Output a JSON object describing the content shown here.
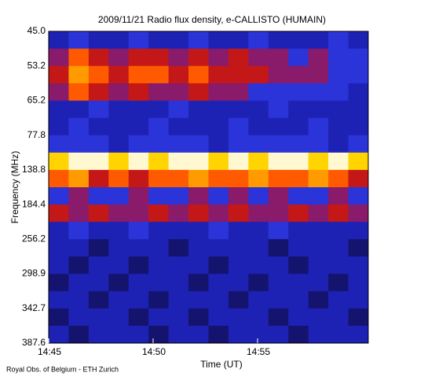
{
  "chart_data": {
    "type": "heatmap",
    "title": "2009/11/21  Radio flux density, e-CALLISTO (HUMAIN)",
    "y_label": "Frequency (MHz)",
    "x_label": "Time (UT)",
    "footnote": "Royal Obs. of Belgium - ETH Zurich",
    "yticks": [
      "45.0",
      "53.2",
      "65.2",
      "77.8",
      "138.8",
      "184.4",
      "256.2",
      "298.9",
      "342.7",
      "387.6"
    ],
    "xticks": [
      "14:45",
      "14:50",
      "14:55"
    ],
    "palette": [
      "#05051e",
      "#14146e",
      "#1e22b4",
      "#2a34d8",
      "#8a1a6a",
      "#c41818",
      "#ff5a00",
      "#ff9a00",
      "#ffd400",
      "#fff8d0"
    ],
    "values": [
      [
        2,
        3,
        2,
        2,
        3,
        2,
        2,
        3,
        2,
        2,
        3,
        2,
        2,
        2,
        3,
        2
      ],
      [
        4,
        6,
        5,
        4,
        5,
        5,
        4,
        5,
        4,
        5,
        4,
        4,
        3,
        4,
        3,
        3
      ],
      [
        5,
        7,
        6,
        5,
        6,
        6,
        5,
        6,
        5,
        5,
        5,
        4,
        4,
        4,
        3,
        3
      ],
      [
        4,
        6,
        5,
        4,
        5,
        4,
        4,
        5,
        4,
        4,
        3,
        3,
        3,
        3,
        3,
        2
      ],
      [
        2,
        2,
        3,
        2,
        2,
        2,
        3,
        2,
        2,
        2,
        2,
        3,
        2,
        2,
        2,
        2
      ],
      [
        2,
        3,
        2,
        2,
        2,
        3,
        2,
        2,
        2,
        3,
        2,
        2,
        2,
        3,
        2,
        2
      ],
      [
        3,
        3,
        3,
        2,
        3,
        3,
        3,
        3,
        2,
        3,
        3,
        3,
        3,
        3,
        2,
        3
      ],
      [
        8,
        9,
        9,
        8,
        9,
        8,
        9,
        9,
        8,
        9,
        8,
        9,
        9,
        8,
        9,
        8
      ],
      [
        6,
        7,
        5,
        6,
        5,
        6,
        6,
        7,
        6,
        6,
        7,
        6,
        6,
        7,
        6,
        5
      ],
      [
        3,
        4,
        3,
        3,
        4,
        3,
        3,
        4,
        3,
        4,
        3,
        4,
        3,
        3,
        4,
        3
      ],
      [
        5,
        4,
        5,
        4,
        4,
        5,
        4,
        5,
        4,
        5,
        4,
        4,
        5,
        4,
        5,
        4
      ],
      [
        2,
        3,
        2,
        2,
        3,
        2,
        2,
        2,
        3,
        2,
        2,
        3,
        2,
        2,
        2,
        2
      ],
      [
        2,
        2,
        1,
        2,
        2,
        2,
        1,
        2,
        2,
        2,
        2,
        1,
        2,
        2,
        2,
        1
      ],
      [
        2,
        1,
        2,
        2,
        1,
        2,
        2,
        2,
        1,
        2,
        2,
        2,
        1,
        2,
        2,
        2
      ],
      [
        1,
        2,
        2,
        1,
        2,
        2,
        2,
        1,
        2,
        2,
        1,
        2,
        2,
        2,
        1,
        2
      ],
      [
        2,
        2,
        1,
        2,
        2,
        1,
        2,
        2,
        2,
        1,
        2,
        2,
        2,
        1,
        2,
        2
      ],
      [
        1,
        2,
        2,
        2,
        1,
        2,
        2,
        1,
        2,
        2,
        2,
        1,
        2,
        2,
        2,
        1
      ],
      [
        2,
        1,
        2,
        2,
        2,
        1,
        2,
        2,
        1,
        2,
        2,
        2,
        1,
        2,
        2,
        2
      ]
    ]
  }
}
